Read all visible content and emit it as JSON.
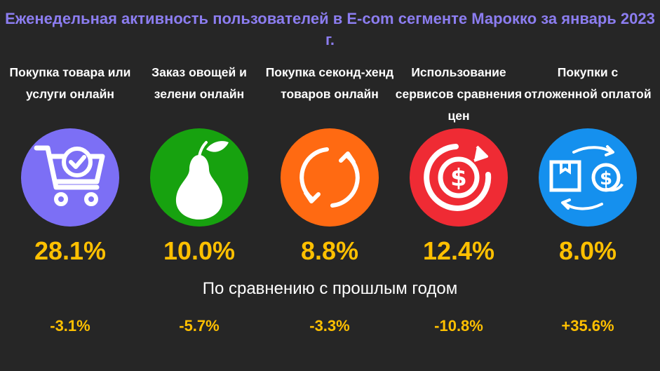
{
  "title": "Еженедельная активность пользователей в E-com сегменте Марокко за январь 2023 г.",
  "comparison_label": "По сравнению с прошлым годом",
  "colors": {
    "title": "#8c7df0",
    "values": "#ffc000",
    "background": "#262626"
  },
  "chart_data": {
    "type": "table",
    "title": "Еженедельная активность пользователей в E-com сегменте Марокко за январь 2023 г.",
    "categories": [
      "Покупка товара или услуги онлайн",
      "Заказ овощей и зелени онлайн",
      "Покупка секонд-хенд товаров онлайн",
      "Использование сервисов сравнения цен",
      "Покупки с отложенной оплатой"
    ],
    "series": [
      {
        "values": [
          28.1,
          10.0,
          8.8,
          12.4,
          8.0
        ]
      },
      {
        "name": "По сравнению с прошлым годом",
        "values": [
          -3.1,
          -5.7,
          -3.3,
          -10.8,
          35.6
        ]
      }
    ],
    "unit": "%"
  },
  "items": [
    {
      "label": "Покупка товара или услуги онлайн",
      "value": "28.1%",
      "change": "-3.1%",
      "icon": "shopping-cart-check-icon",
      "color": "#7c6ff5"
    },
    {
      "label": "Заказ овощей и зелени онлайн",
      "value": "10.0%",
      "change": "-5.7%",
      "icon": "pear-icon",
      "color": "#17a20f"
    },
    {
      "label": "Покупка секонд-хенд товаров онлайн",
      "value": "8.8%",
      "change": "-3.3%",
      "icon": "recycle-arrows-icon",
      "color": "#ff6a12"
    },
    {
      "label": "Использование сервисов сравнения цен",
      "value": "12.4%",
      "change": "-10.8%",
      "icon": "dollar-refresh-icon",
      "color": "#ef2b34"
    },
    {
      "label": "Покупки с отложенной оплатой",
      "value": "8.0%",
      "change": "+35.6%",
      "icon": "box-coin-exchange-icon",
      "color": "#1590ee"
    }
  ]
}
